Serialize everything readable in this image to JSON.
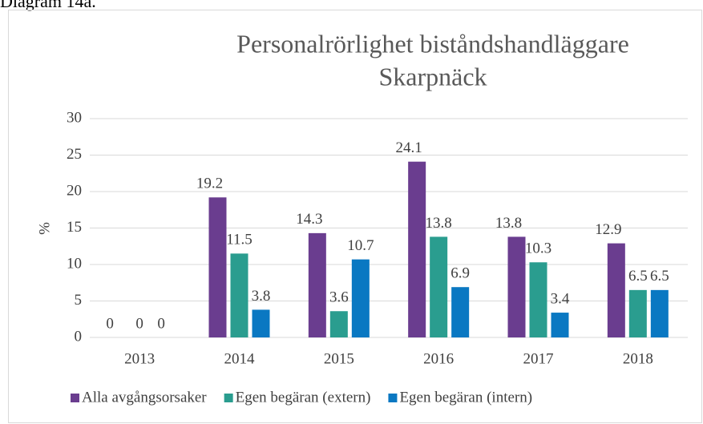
{
  "chart_data": {
    "type": "bar",
    "caption": "Diagram 14a.",
    "title": "Personalrörlighet biståndshandläggare",
    "subtitle": "Skarpnäck",
    "y_label": "%",
    "categories": [
      "2013",
      "2014",
      "2015",
      "2016",
      "2017",
      "2018"
    ],
    "series": [
      {
        "name": "Alla avgångsorsaker",
        "color": "#6a3d8f",
        "values": [
          0,
          19.2,
          14.3,
          24.1,
          13.8,
          12.9
        ]
      },
      {
        "name": "Egen begäran (extern)",
        "color": "#2a9d8f",
        "values": [
          0,
          11.5,
          3.6,
          13.8,
          10.3,
          6.5
        ]
      },
      {
        "name": "Egen begäran (intern)",
        "color": "#0a78c2",
        "values": [
          0,
          3.8,
          10.7,
          6.9,
          3.4,
          6.5
        ]
      }
    ],
    "ylim": [
      0,
      30
    ],
    "yticks": [
      0,
      5,
      10,
      15,
      20,
      25,
      30
    ],
    "grid": true,
    "legend": "bottom"
  }
}
